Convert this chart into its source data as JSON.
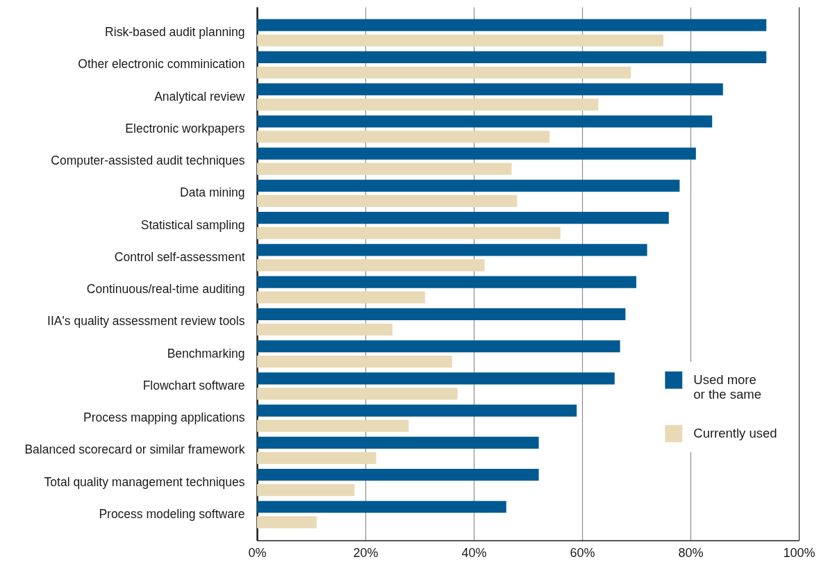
{
  "chart_data": {
    "type": "bar",
    "orientation": "horizontal",
    "categories": [
      "Risk-based audit planning",
      "Other electronic comminication",
      "Analytical review",
      "Electronic workpapers",
      "Computer-assisted audit techniques",
      "Data mining",
      "Statistical sampling",
      "Control self-assessment",
      "Continuous/real-time auditing",
      "IIA's quality assessment review tools",
      "Benchmarking",
      "Flowchart software",
      "Process mapping applications",
      "Balanced scorecard or similar framework",
      "Total quality management techniques",
      "Process modeling software"
    ],
    "series": [
      {
        "name": "Used more or the same",
        "color": "#005a91",
        "values": [
          94,
          94,
          86,
          84,
          81,
          78,
          76,
          72,
          70,
          68,
          67,
          66,
          59,
          52,
          52,
          46
        ]
      },
      {
        "name": "Currently used",
        "color": "#e8dab6",
        "values": [
          75,
          69,
          63,
          54,
          47,
          48,
          56,
          42,
          31,
          25,
          36,
          37,
          28,
          22,
          18,
          11
        ]
      }
    ],
    "xlim": [
      0,
      100
    ],
    "xticks": [
      {
        "value": 0,
        "label": "0%"
      },
      {
        "value": 20,
        "label": "20%"
      },
      {
        "value": 40,
        "label": "40%"
      },
      {
        "value": 60,
        "label": "60%"
      },
      {
        "value": 80,
        "label": "80%"
      },
      {
        "value": 100,
        "label": "100%"
      }
    ],
    "grid": "x",
    "legend": "bottom right"
  }
}
